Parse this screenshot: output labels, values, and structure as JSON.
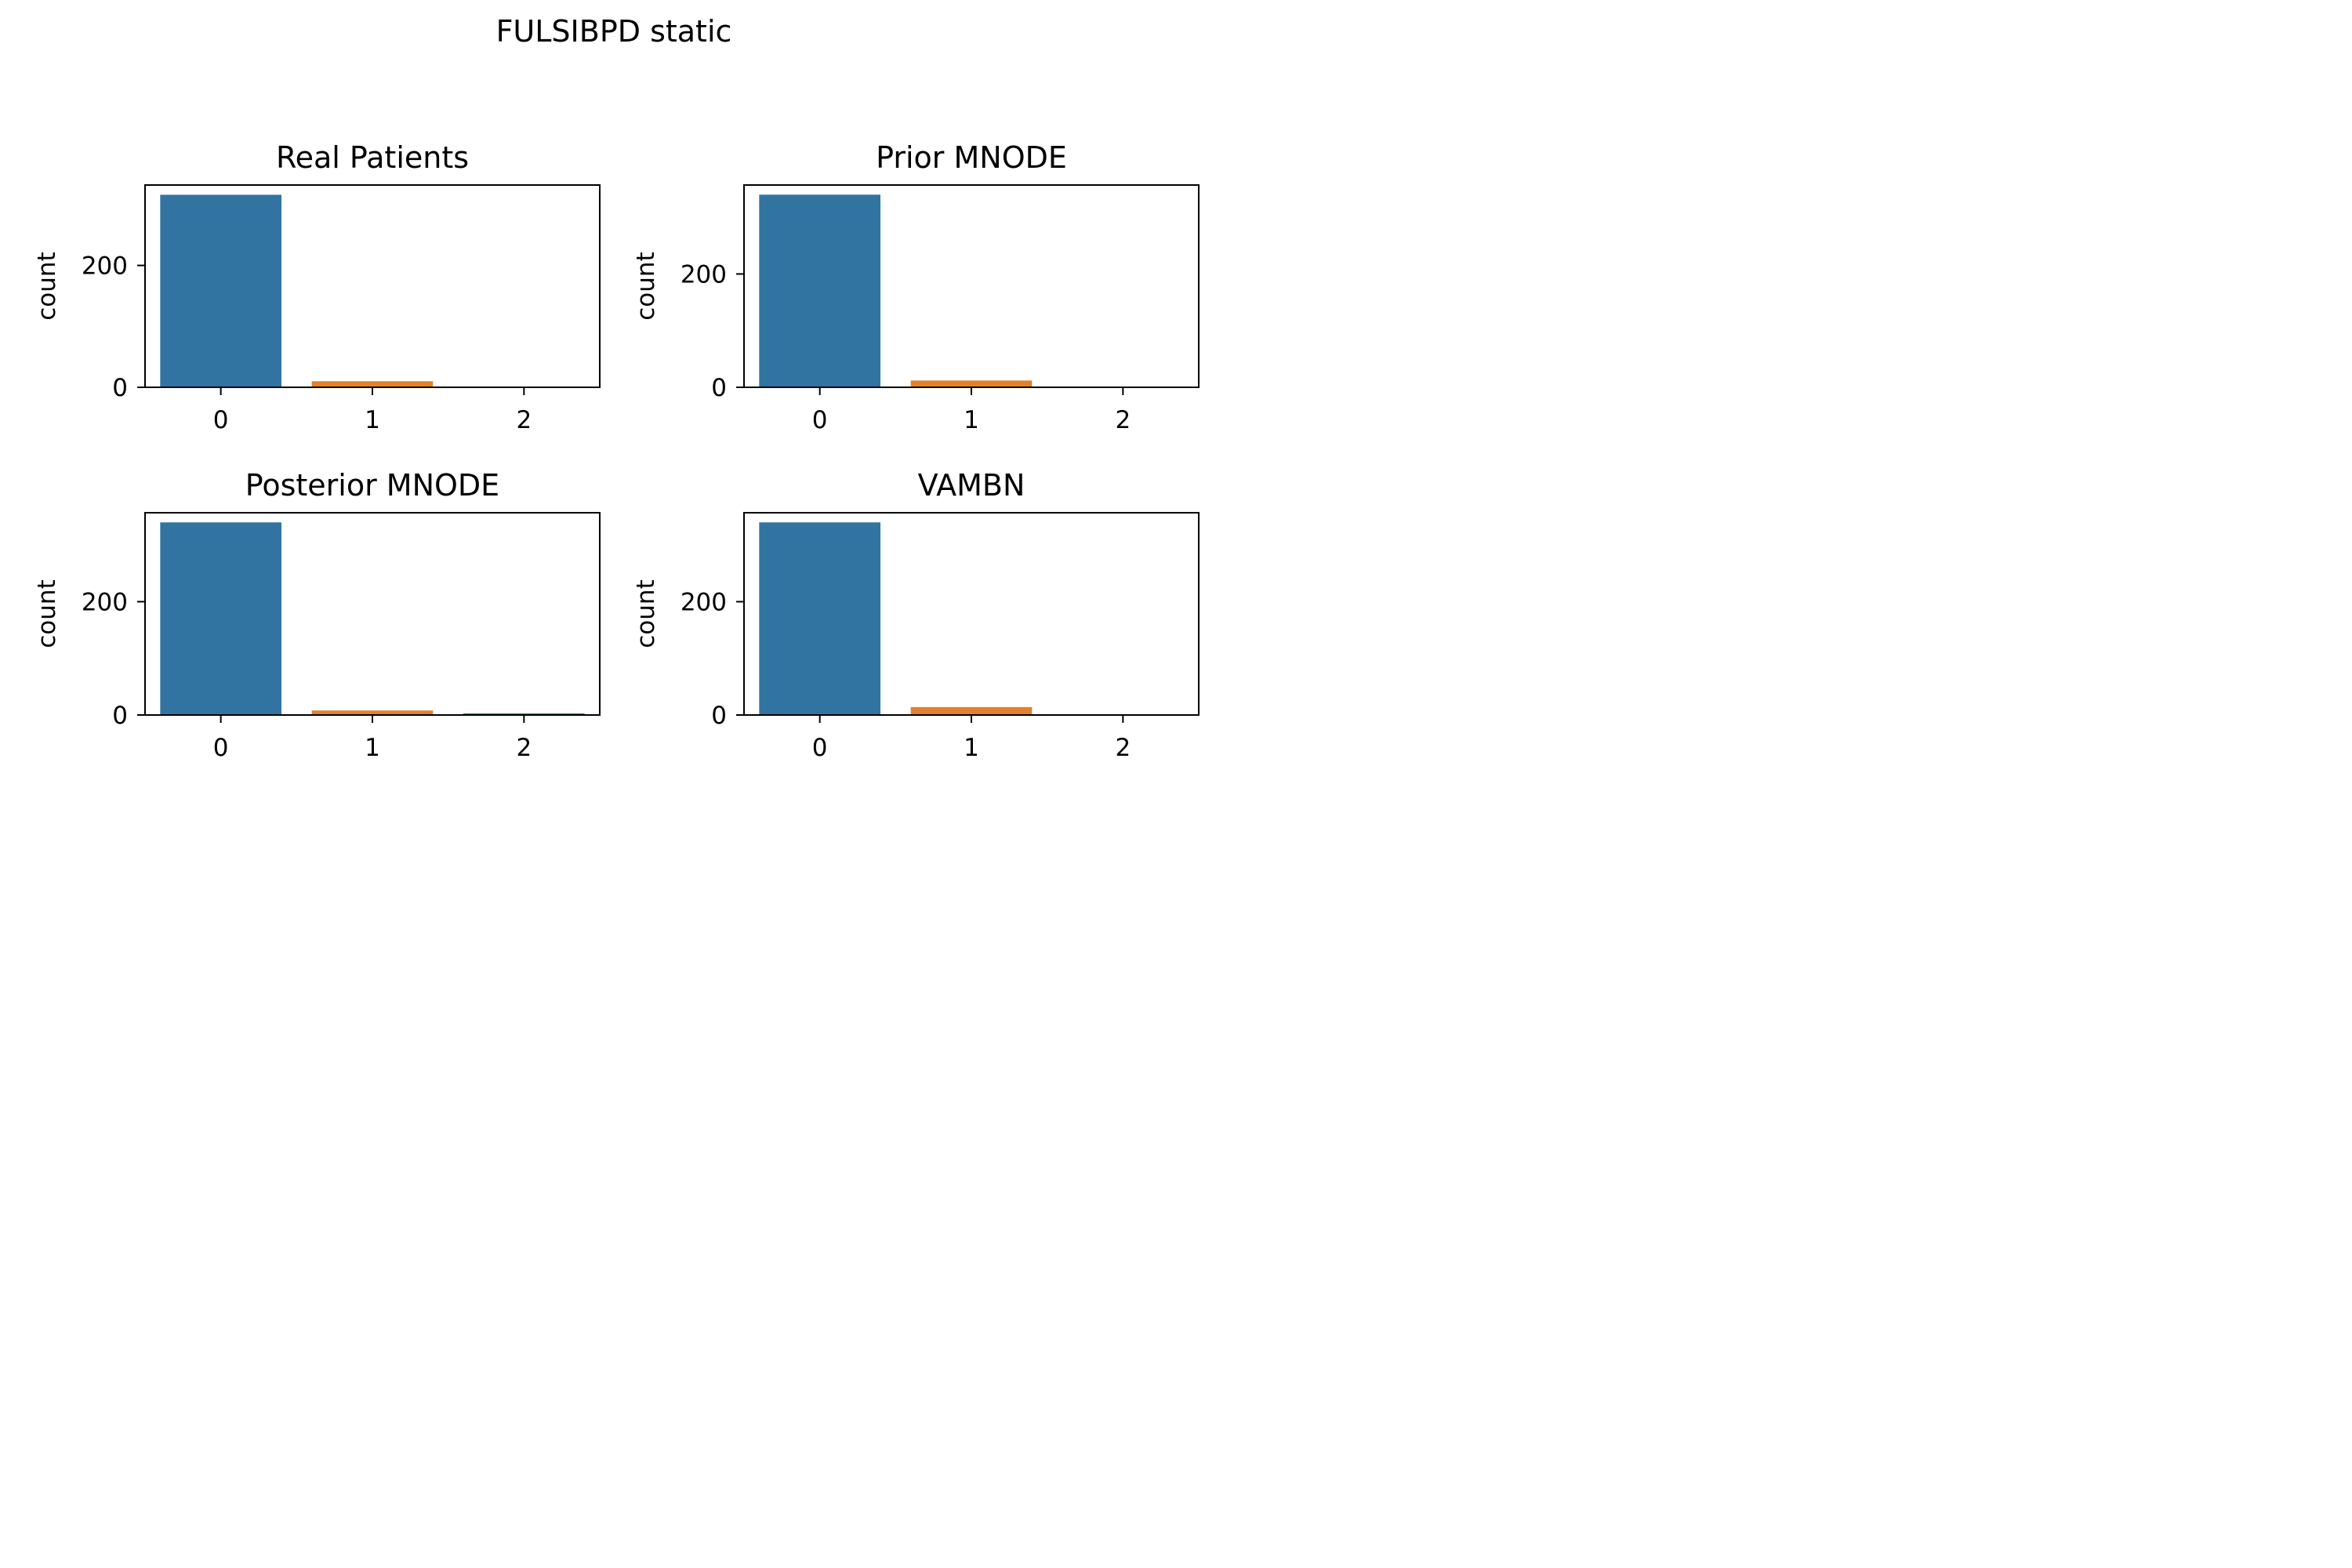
{
  "figure": {
    "suptitle": "FULSIBPD static"
  },
  "colors": {
    "category_0": "#3274a1",
    "category_1": "#e1812c",
    "category_2": "#3a923a"
  },
  "chart_data": [
    {
      "type": "bar",
      "title": "Real Patients",
      "xlabel": "",
      "ylabel": "count",
      "categories": [
        "0",
        "1",
        "2"
      ],
      "values": [
        316,
        10,
        0
      ],
      "ylim": [
        0,
        332
      ],
      "yticks": [
        0,
        200
      ]
    },
    {
      "type": "bar",
      "title": "Prior MNODE",
      "xlabel": "",
      "ylabel": "count",
      "categories": [
        "0",
        "1",
        "2"
      ],
      "values": [
        340,
        12,
        0
      ],
      "ylim": [
        0,
        357
      ],
      "yticks": [
        0,
        200
      ]
    },
    {
      "type": "bar",
      "title": "Posterior MNODE",
      "xlabel": "",
      "ylabel": "count",
      "categories": [
        "0",
        "1",
        "2"
      ],
      "values": [
        340,
        8,
        3
      ],
      "ylim": [
        0,
        357
      ],
      "yticks": [
        0,
        200
      ]
    },
    {
      "type": "bar",
      "title": "VAMBN",
      "xlabel": "",
      "ylabel": "count",
      "categories": [
        "0",
        "1",
        "2"
      ],
      "values": [
        340,
        14,
        0
      ],
      "ylim": [
        0,
        357
      ],
      "yticks": [
        0,
        200
      ]
    }
  ]
}
